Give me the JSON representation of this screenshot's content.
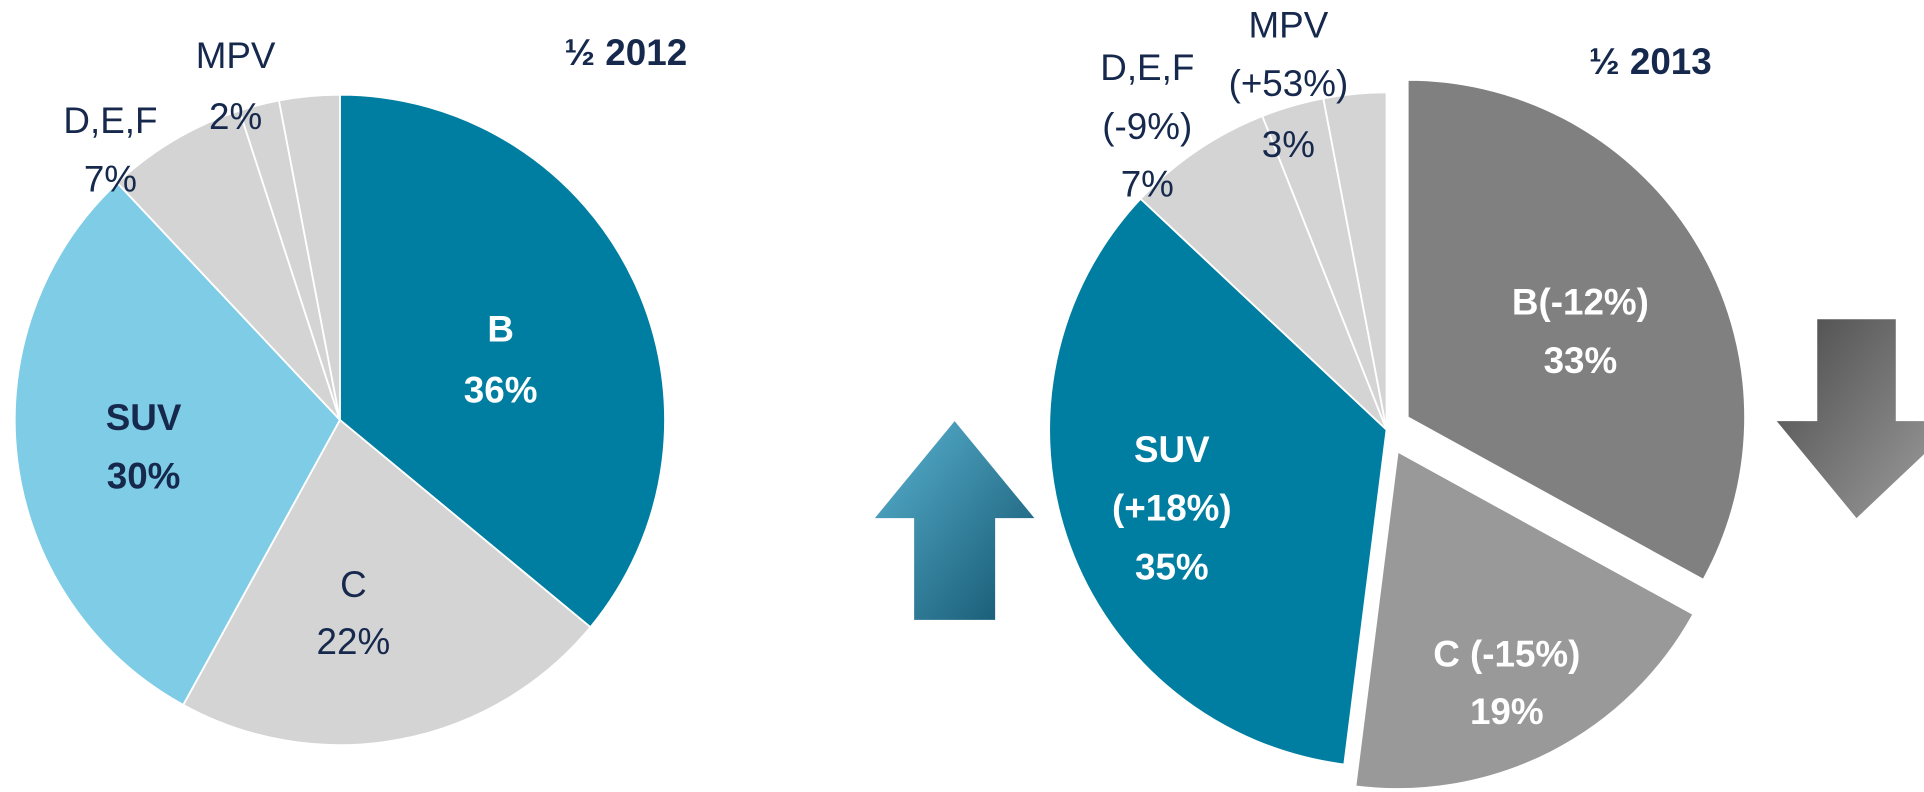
{
  "chart_data": [
    {
      "type": "pie",
      "title": "½  2012",
      "categories": [
        "B",
        "C",
        "SUV",
        "D,E,F",
        "MPV",
        null
      ],
      "values": [
        36,
        22,
        30,
        7,
        2,
        3
      ],
      "value_labels": [
        "36%",
        "22%",
        "30%",
        "7%",
        "2%",
        null
      ],
      "colors": [
        "#007ea1",
        "#d4d4d4",
        "#7ecce6",
        "#d4d4d4",
        "#d4d4d4",
        "#d4d4d4"
      ],
      "explode": [
        false,
        false,
        false,
        false,
        false,
        false
      ]
    },
    {
      "type": "pie",
      "title": "½ 2013",
      "categories": [
        "B(-12%)",
        "C (-15%)",
        "SUV\n(+18%)",
        "D,E,F\n(-9%)",
        "MPV\n(+53%)",
        null
      ],
      "values": [
        33,
        19,
        35,
        7,
        3,
        3
      ],
      "value_labels": [
        "33%",
        "19%",
        "35%",
        "7%",
        "3%",
        null
      ],
      "colors": [
        "#808080",
        "#999999",
        "#007ea1",
        "#d4d4d4",
        "#d4d4d4",
        "#d4d4d4"
      ],
      "explode": [
        true,
        true,
        false,
        false,
        false,
        false
      ]
    }
  ]
}
